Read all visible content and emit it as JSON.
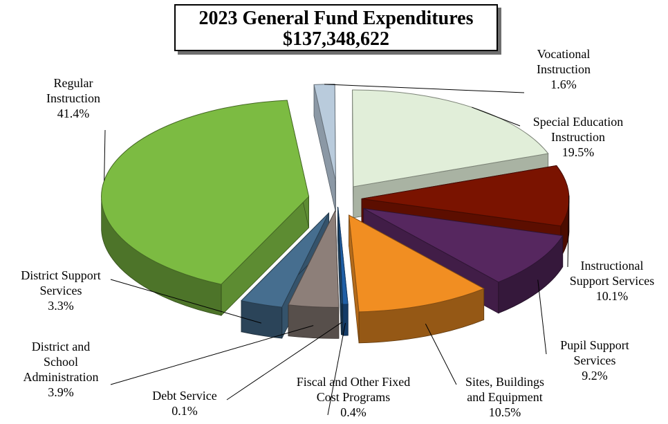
{
  "chart_data": {
    "type": "pie",
    "title": "2023 General Fund Expenditures",
    "subtitle": "$137,348,622",
    "slices": [
      {
        "label_lines": [
          "Vocational",
          "Instruction"
        ],
        "value": 1.6,
        "display": "1.6%",
        "color": "#b9cbdc"
      },
      {
        "label_lines": [
          "Special Education",
          "Instruction"
        ],
        "value": 19.5,
        "display": "19.5%",
        "color": "#e1eed9"
      },
      {
        "label_lines": [
          "Instructional",
          "Support Services"
        ],
        "value": 10.1,
        "display": "10.1%",
        "color": "#7a1300"
      },
      {
        "label_lines": [
          "Pupil Support",
          "Services"
        ],
        "value": 9.2,
        "display": "9.2%",
        "color": "#56275f"
      },
      {
        "label_lines": [
          "Sites, Buildings",
          "and Equipment"
        ],
        "value": 10.5,
        "display": "10.5%",
        "color": "#f18e22"
      },
      {
        "label_lines": [
          "Fiscal and Other Fixed",
          "Cost Programs"
        ],
        "value": 0.4,
        "display": "0.4%",
        "color": "#1f5fa6"
      },
      {
        "label_lines": [
          "Debt Service"
        ],
        "value": 0.1,
        "display": "0.1%",
        "color": "#2c5e8a"
      },
      {
        "label_lines": [
          "District and",
          "School",
          "Administration"
        ],
        "value": 3.9,
        "display": "3.9%",
        "color": "#8d7f79"
      },
      {
        "label_lines": [
          "District Support",
          "Services"
        ],
        "value": 3.3,
        "display": "3.3%",
        "color": "#466e8f"
      },
      {
        "label_lines": [
          "Regular",
          "Instruction"
        ],
        "value": 41.4,
        "display": "41.4%",
        "color": "#7cbb42"
      }
    ]
  }
}
